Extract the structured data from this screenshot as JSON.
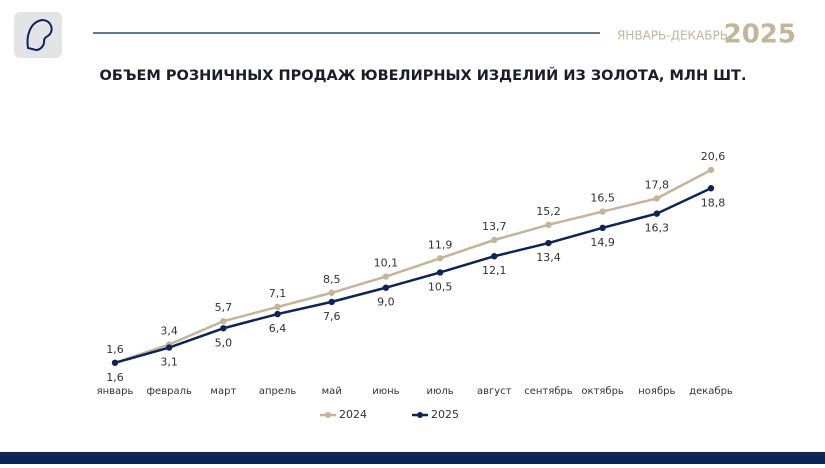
{
  "header": {
    "period": "ЯНВАРЬ-ДЕКАБРЬ",
    "year": "2025"
  },
  "chart_data": {
    "type": "line",
    "title": "ОБЪЕМ РОЗНИЧНЫХ ПРОДАЖ ЮВЕЛИРНЫХ ИЗДЕЛИЙ ИЗ ЗОЛОТА, МЛН ШТ.",
    "categories": [
      "январь",
      "февраль",
      "март",
      "апрель",
      "май",
      "июнь",
      "июль",
      "август",
      "сентябрь",
      "октябрь",
      "ноябрь",
      "декабрь"
    ],
    "series": [
      {
        "name": "2024",
        "color": "#c3b59a",
        "values": [
          1.6,
          3.4,
          5.7,
          7.1,
          8.5,
          10.1,
          11.9,
          13.7,
          15.2,
          16.5,
          17.8,
          20.6
        ],
        "value_labels": [
          "1,6",
          "3,4",
          "5,7",
          "7,1",
          "8,5",
          "10,1",
          "11,9",
          "13,7",
          "15,2",
          "16,5",
          "17,8",
          "20,6"
        ]
      },
      {
        "name": "2025",
        "color": "#0d2456",
        "values": [
          1.6,
          3.1,
          5.0,
          6.4,
          7.6,
          9.0,
          10.5,
          12.1,
          13.4,
          14.9,
          16.3,
          18.8
        ],
        "value_labels": [
          "1,6",
          "3,1",
          "5,0",
          "6,4",
          "7,6",
          "9,0",
          "10,5",
          "12,1",
          "13,4",
          "14,9",
          "16,3",
          "18,8"
        ]
      }
    ]
  }
}
